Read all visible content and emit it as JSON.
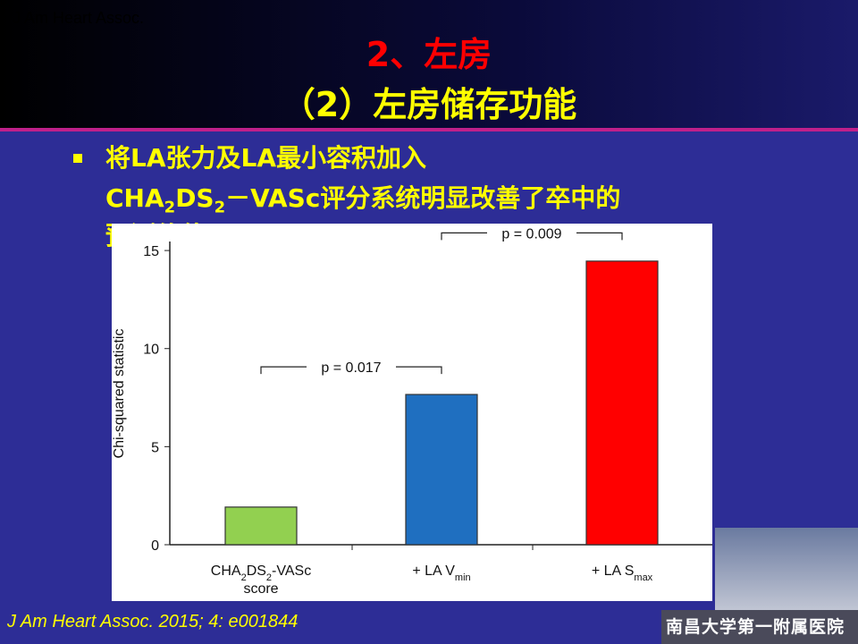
{
  "source_top": "J Am Heart Assoc.",
  "title": {
    "line1": "2、左房",
    "line2": "（2）左房储存功能"
  },
  "bullet": {
    "line1": "将LA张力及LA最小容积加入",
    "line2": [
      "CHA",
      "2",
      "DS",
      "2",
      "－VASc评分系统明显改善了卒中的"
    ],
    "line3": "预测价值"
  },
  "footer": "J Am Heart Assoc. 2015; 4: e001844",
  "logo": "南昌大学第一附属医院",
  "chart_data": {
    "type": "bar",
    "ylabel": "Chi-squared statistic",
    "categories": [
      [
        [
          "CHA",
          "2",
          "DS",
          "2",
          "-VASc"
        ],
        [
          "score"
        ]
      ],
      [
        [
          "+ LA V",
          "min"
        ]
      ],
      [
        [
          "+ LA S",
          "max"
        ]
      ]
    ],
    "values": [
      1.92,
      7.66,
      14.46
    ],
    "colors": [
      "#92d050",
      "#1f6fc0",
      "#ff0000"
    ],
    "ylim": [
      0,
      15.46
    ],
    "yticks": [
      0,
      5,
      10,
      15
    ],
    "annotations": [
      {
        "text": "p = 0.017",
        "between": [
          0,
          1
        ],
        "y": 9.07
      },
      {
        "text": "p = 0.009",
        "between": [
          1,
          2
        ],
        "y": 15.9
      }
    ]
  }
}
